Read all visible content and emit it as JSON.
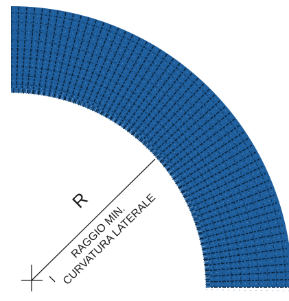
{
  "labels": {
    "radius_symbol": "R",
    "line1": "RAGGIO MIN.",
    "line2": "CURVATURA LATERALE"
  },
  "colors": {
    "belt": "#1f5e9c",
    "belt_dark": "#0b2238",
    "belt_light": "#6d98c4",
    "line": "#1b1b1b",
    "background": "#ffffff"
  },
  "icons": {
    "center_mark": "crosshair-icon"
  }
}
